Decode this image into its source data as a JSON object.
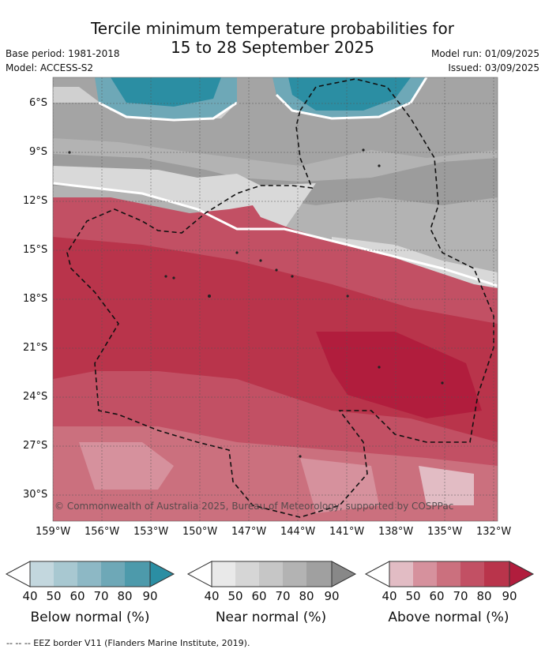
{
  "header": {
    "title_line1": "Tercile minimum temperature probabilities for",
    "title_line2": "15 to 28 September 2025",
    "base_period": "Base period: 1981-2018",
    "model": "Model: ACCESS-S2",
    "model_run": "Model run: 01/09/2025",
    "issued": "Issued: 03/09/2025"
  },
  "map": {
    "lat_labels": [
      "6°S",
      "9°S",
      "12°S",
      "15°S",
      "18°S",
      "21°S",
      "24°S",
      "27°S",
      "30°S"
    ],
    "lon_labels": [
      "159°W",
      "156°W",
      "153°W",
      "150°W",
      "147°W",
      "144°W",
      "141°W",
      "138°W",
      "135°W",
      "132°W"
    ],
    "copyright": "© Commonwealth of Australia 2025, Bureau of Meteorology, supported by COSPPac",
    "colors": {
      "above": [
        "#e2bcc4",
        "#d6919d",
        "#cb707e",
        "#c25064",
        "#b9344b",
        "#b11d3d"
      ],
      "near": [
        "#e9e9e9",
        "#d6d6d6",
        "#c6c6c6",
        "#b3b3b3",
        "#a0a0a0",
        "#888888"
      ],
      "below": [
        "#c3d7de",
        "#a8c8d1",
        "#8db8c5",
        "#6ea8b7",
        "#4d9aab",
        "#2b8ea3"
      ]
    }
  },
  "colorbars": [
    {
      "label": "Below normal (%)",
      "ticks": [
        "40",
        "50",
        "60",
        "70",
        "80",
        "90"
      ]
    },
    {
      "label": "Near normal (%)",
      "ticks": [
        "40",
        "50",
        "60",
        "70",
        "80",
        "90"
      ]
    },
    {
      "label": "Above normal (%)",
      "ticks": [
        "40",
        "50",
        "60",
        "70",
        "80",
        "90"
      ]
    }
  ],
  "footer": {
    "eez": "--  --  -- EEZ border V11 (Flanders Marine Institute, 2019)."
  }
}
